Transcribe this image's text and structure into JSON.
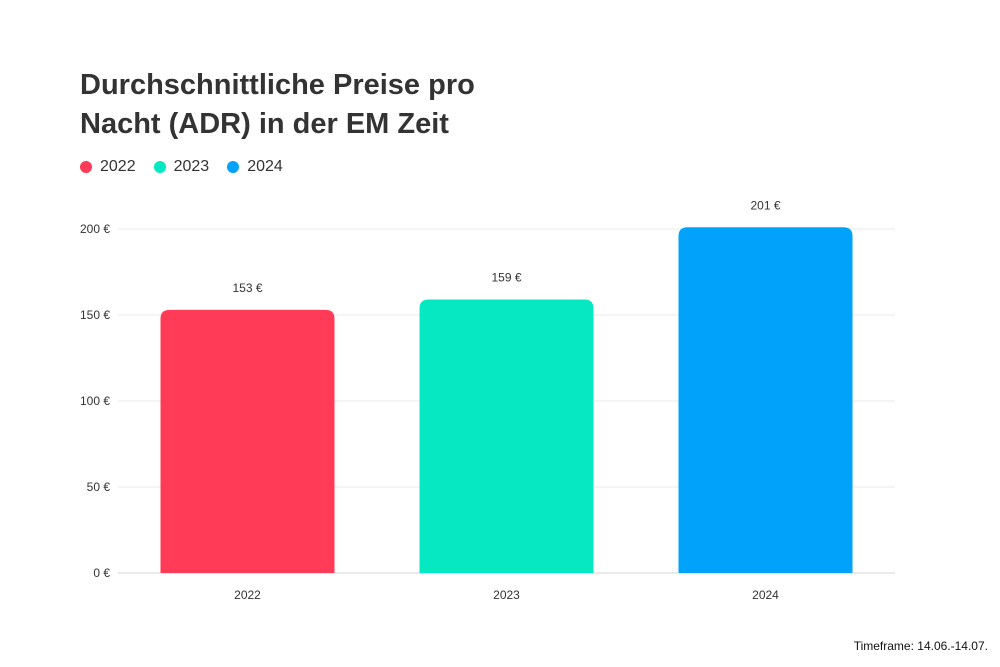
{
  "chart_data": {
    "type": "bar",
    "title": "Durchschnittliche Preise pro Nacht (ADR) in der EM Zeit",
    "categories": [
      "2022",
      "2023",
      "2024"
    ],
    "values": [
      153,
      159,
      201
    ],
    "data_labels": [
      "153 €",
      "159 €",
      "201 €"
    ],
    "colors": [
      "#FF3B57",
      "#05E8C2",
      "#00A2FA"
    ],
    "legend": [
      {
        "label": "2022",
        "color": "#FF3B57"
      },
      {
        "label": "2023",
        "color": "#05E8C2"
      },
      {
        "label": "2024",
        "color": "#00A2FA"
      }
    ],
    "legend_position": "top-left",
    "y_ticks": [
      0,
      50,
      100,
      150,
      200
    ],
    "y_tick_labels": [
      "0 €",
      "50 €",
      "100 €",
      "150 €",
      "200 €"
    ],
    "ylim": [
      0,
      200
    ],
    "grid": true,
    "xlabel": "",
    "ylabel": ""
  },
  "footnote": "Timeframe: 14.06.-14.07."
}
